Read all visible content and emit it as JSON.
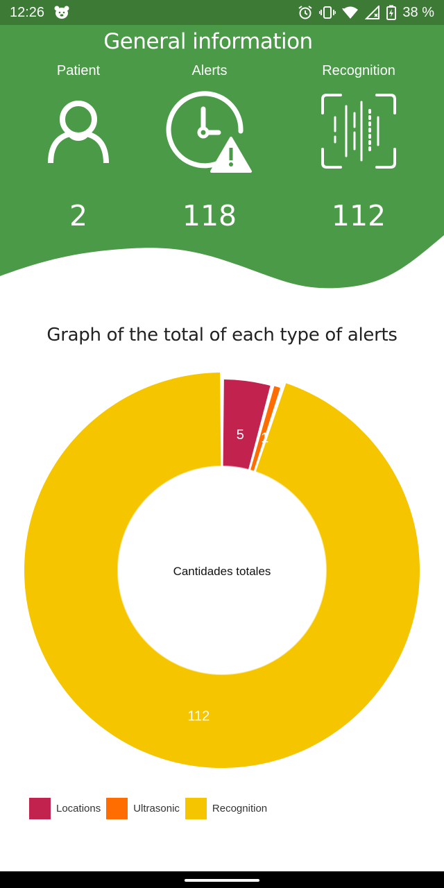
{
  "status_bar": {
    "time": "12:26",
    "battery": "38 %"
  },
  "header": {
    "title": "General information",
    "background_color": "#4a9a48",
    "stats": [
      {
        "label": "Patient",
        "value": "2",
        "icon": "person-icon"
      },
      {
        "label": "Alerts",
        "value": "118",
        "icon": "clock-alert-icon"
      },
      {
        "label": "Recognition",
        "value": "112",
        "icon": "barcode-scan-icon"
      }
    ]
  },
  "chart_data": {
    "type": "pie",
    "title": "Graph of the total of each type of alerts",
    "center_text": "Cantidades totales",
    "categories": [
      "Locations",
      "Ultrasonic",
      "Recognition"
    ],
    "values": [
      5,
      1,
      112
    ],
    "colors": [
      "#c2234e",
      "#ff6d00",
      "#f5c500"
    ],
    "legend_position": "bottom-left"
  }
}
